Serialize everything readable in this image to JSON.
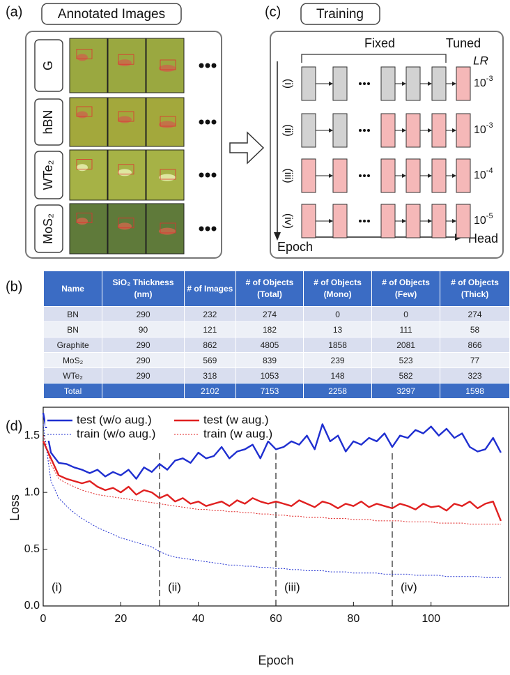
{
  "panel_a": {
    "label": "(a)",
    "title": "Annotated Images",
    "rows": [
      "G",
      "hBN",
      "WTe₂",
      "MoS₂"
    ]
  },
  "panel_c": {
    "label": "(c)",
    "title": "Training",
    "fixed_label": "Fixed",
    "tuned_label": "Tuned",
    "lr_label": "LR",
    "stages": [
      "(i)",
      "(ii)",
      "(iii)",
      "(iv)"
    ],
    "lr": [
      {
        "base": "10",
        "exponent": "-3"
      },
      {
        "base": "10",
        "exponent": "-3"
      },
      {
        "base": "10",
        "exponent": "-4"
      },
      {
        "base": "10",
        "exponent": "-5"
      }
    ],
    "epoch_label": "Epoch",
    "head_label": "Head"
  },
  "panel_b": {
    "label": "(b)",
    "table": {
      "header": [
        "Name",
        "SiO₂ Thickness (nm)",
        "# of Images",
        "# of Objects (Total)",
        "# of Objects (Mono)",
        "# of Objects (Few)",
        "# of Objects (Thick)"
      ],
      "rows": [
        [
          "BN",
          290,
          232,
          274,
          0,
          0,
          274
        ],
        [
          "BN",
          90,
          121,
          182,
          13,
          111,
          58
        ],
        [
          "Graphite",
          290,
          862,
          4805,
          1858,
          2081,
          866
        ],
        [
          "MoS₂",
          290,
          569,
          839,
          239,
          523,
          77
        ],
        [
          "WTe₂",
          290,
          318,
          1053,
          148,
          582,
          323
        ],
        [
          "Total",
          null,
          2102,
          7153,
          2258,
          3297,
          1598
        ]
      ]
    }
  },
  "chart_data": {
    "type": "line",
    "label": "(d)",
    "x_label": "Epoch",
    "y_label": "Loss",
    "x": [
      0,
      2,
      4,
      6,
      8,
      10,
      12,
      14,
      16,
      18,
      20,
      22,
      24,
      26,
      28,
      30,
      32,
      34,
      36,
      38,
      40,
      42,
      44,
      46,
      48,
      50,
      52,
      54,
      56,
      58,
      60,
      62,
      64,
      66,
      68,
      70,
      72,
      74,
      76,
      78,
      80,
      82,
      84,
      86,
      88,
      90,
      92,
      94,
      96,
      98,
      100,
      102,
      104,
      106,
      108,
      110,
      112,
      114,
      116,
      118
    ],
    "xlim": [
      0,
      120
    ],
    "xticks": [
      0,
      20,
      40,
      60,
      80,
      100
    ],
    "ylim": [
      0,
      1.75
    ],
    "yticks": [
      {
        "value": 0,
        "label": "0.0"
      },
      0.5,
      {
        "value": 1,
        "label": "1.0"
      },
      1.5
    ],
    "phase_boundaries": [
      30,
      60,
      90
    ],
    "phase_labels": [
      "(i)",
      "(ii)",
      "(iii)",
      "(iv)"
    ],
    "series": [
      {
        "name": "test (w/o aug.)",
        "color": "#1f2fd0",
        "style": "solid",
        "values": [
          1.7,
          1.35,
          1.26,
          1.25,
          1.22,
          1.2,
          1.17,
          1.2,
          1.14,
          1.18,
          1.15,
          1.2,
          1.12,
          1.22,
          1.18,
          1.25,
          1.2,
          1.28,
          1.3,
          1.26,
          1.35,
          1.3,
          1.32,
          1.4,
          1.3,
          1.36,
          1.38,
          1.42,
          1.3,
          1.45,
          1.38,
          1.4,
          1.45,
          1.42,
          1.5,
          1.38,
          1.6,
          1.45,
          1.5,
          1.36,
          1.45,
          1.42,
          1.48,
          1.45,
          1.52,
          1.4,
          1.5,
          1.48,
          1.55,
          1.52,
          1.58,
          1.5,
          1.56,
          1.48,
          1.52,
          1.4,
          1.36,
          1.38,
          1.48,
          1.35
        ]
      },
      {
        "name": "test (w aug.)",
        "color": "#e02020",
        "style": "solid",
        "values": [
          1.45,
          1.3,
          1.15,
          1.12,
          1.1,
          1.08,
          1.1,
          1.05,
          1.02,
          1.04,
          1.0,
          1.05,
          0.98,
          1.02,
          1.0,
          0.95,
          0.98,
          0.92,
          0.95,
          0.9,
          0.92,
          0.88,
          0.9,
          0.92,
          0.88,
          0.93,
          0.9,
          0.95,
          0.92,
          0.9,
          0.92,
          0.9,
          0.88,
          0.93,
          0.9,
          0.87,
          0.92,
          0.9,
          0.86,
          0.9,
          0.88,
          0.92,
          0.87,
          0.9,
          0.88,
          0.86,
          0.9,
          0.88,
          0.85,
          0.9,
          0.87,
          0.88,
          0.84,
          0.9,
          0.88,
          0.92,
          0.86,
          0.9,
          0.92,
          0.75
        ]
      },
      {
        "name": "train (w/o aug.)",
        "color": "#1f2fd0",
        "style": "dotted",
        "values": [
          1.6,
          1.1,
          0.95,
          0.88,
          0.82,
          0.77,
          0.73,
          0.69,
          0.66,
          0.63,
          0.6,
          0.58,
          0.56,
          0.54,
          0.52,
          0.48,
          0.45,
          0.43,
          0.42,
          0.41,
          0.4,
          0.39,
          0.38,
          0.37,
          0.36,
          0.36,
          0.35,
          0.35,
          0.34,
          0.34,
          0.33,
          0.33,
          0.32,
          0.32,
          0.31,
          0.31,
          0.31,
          0.3,
          0.3,
          0.3,
          0.29,
          0.29,
          0.29,
          0.29,
          0.28,
          0.28,
          0.28,
          0.28,
          0.27,
          0.27,
          0.27,
          0.27,
          0.26,
          0.26,
          0.26,
          0.26,
          0.26,
          0.25,
          0.25,
          0.25
        ]
      },
      {
        "name": "train (w aug.)",
        "color": "#e02020",
        "style": "dotted",
        "values": [
          1.5,
          1.25,
          1.12,
          1.08,
          1.05,
          1.02,
          1.0,
          0.98,
          0.97,
          0.96,
          0.95,
          0.94,
          0.93,
          0.92,
          0.91,
          0.9,
          0.89,
          0.88,
          0.87,
          0.86,
          0.85,
          0.85,
          0.84,
          0.84,
          0.83,
          0.83,
          0.82,
          0.82,
          0.81,
          0.81,
          0.8,
          0.8,
          0.79,
          0.79,
          0.78,
          0.78,
          0.78,
          0.77,
          0.77,
          0.77,
          0.76,
          0.76,
          0.76,
          0.75,
          0.75,
          0.75,
          0.75,
          0.74,
          0.74,
          0.74,
          0.74,
          0.73,
          0.73,
          0.73,
          0.73,
          0.72,
          0.72,
          0.72,
          0.72,
          0.72
        ]
      }
    ]
  }
}
